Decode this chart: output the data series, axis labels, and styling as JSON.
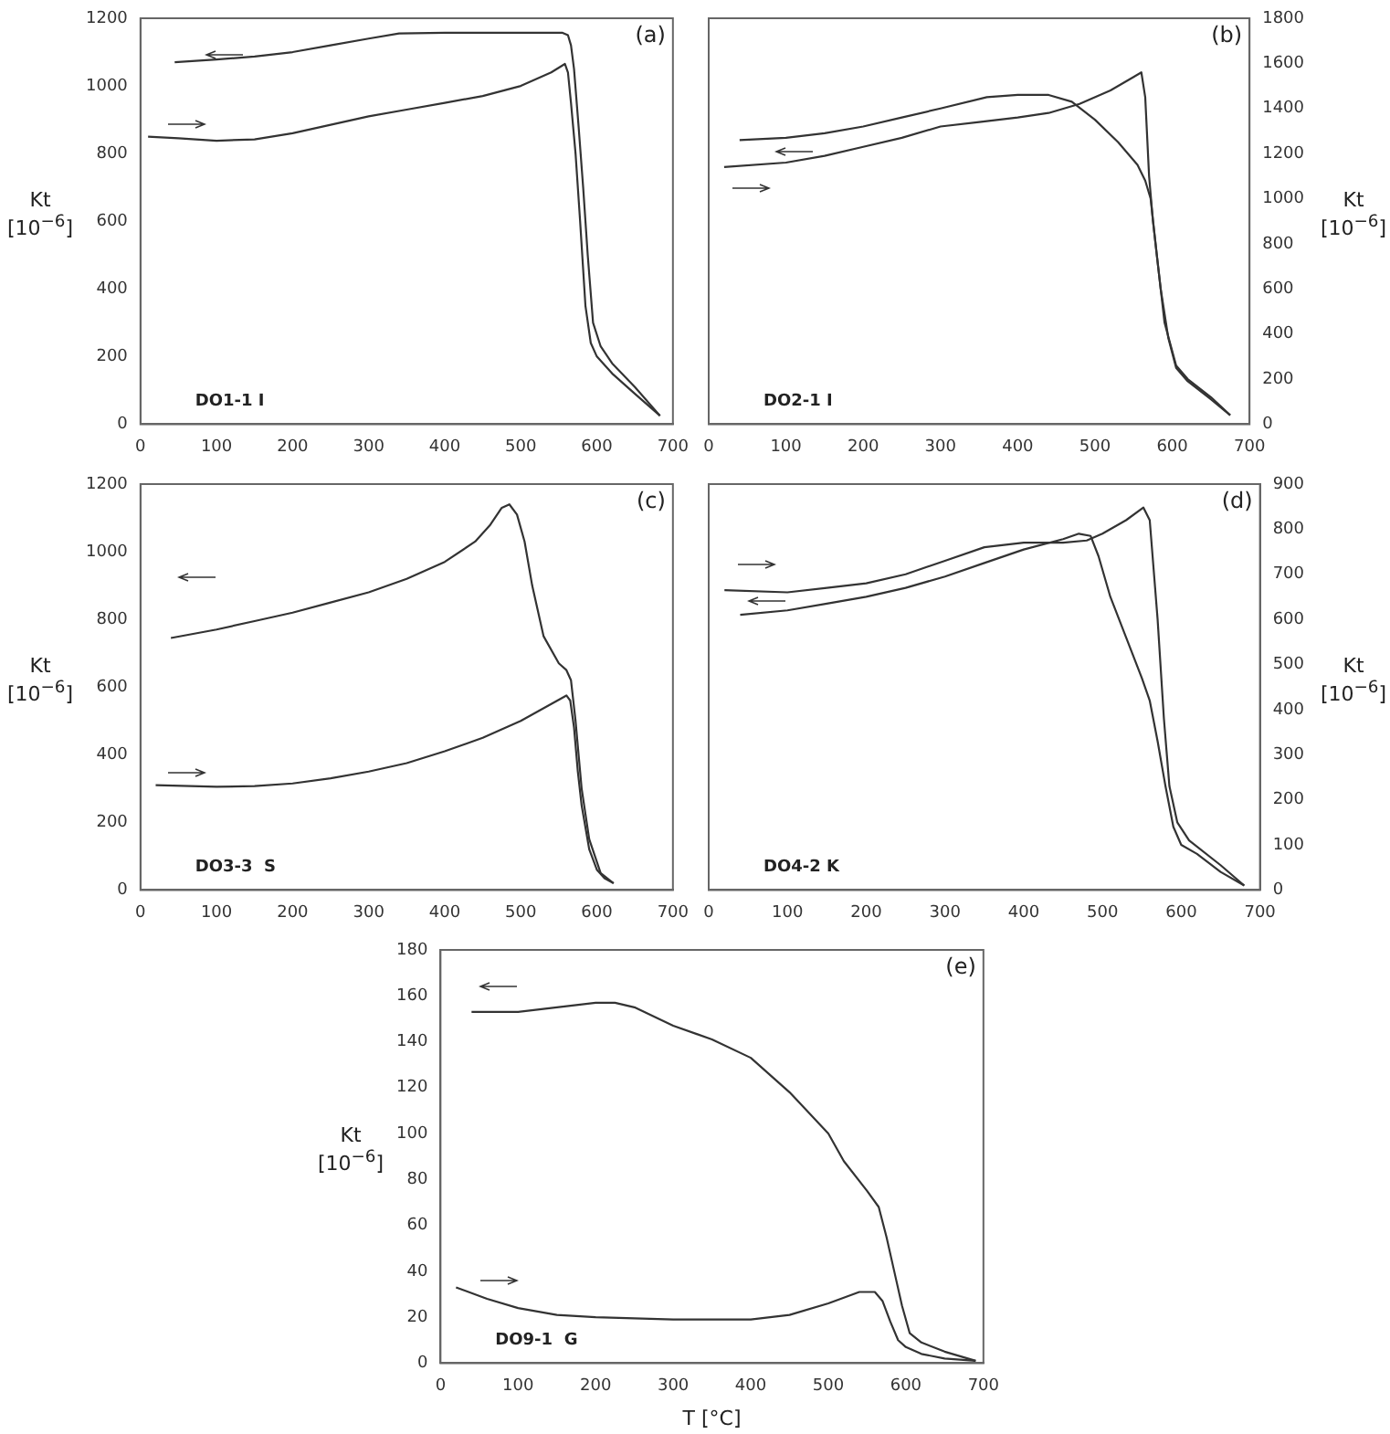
{
  "chart_data": [
    {
      "type": "line",
      "annotations": [
        "(a)",
        "DO1-1 I"
      ],
      "ylabel": "Kt [10$^{−6}$]",
      "xlim": [
        0,
        700
      ],
      "xticks": [
        0,
        100,
        200,
        300,
        400,
        500,
        600,
        700
      ],
      "ylim": [
        0,
        1200
      ],
      "yticks": [
        0,
        200,
        400,
        600,
        800,
        1000,
        1200
      ],
      "series": [
        {
          "color": "#333333",
          "x": [
            10,
            50,
            100,
            150,
            200,
            250,
            300,
            350,
            400,
            450,
            500,
            540,
            558,
            562,
            566,
            572,
            578,
            585,
            592,
            600,
            620,
            650,
            683
          ],
          "values": [
            850,
            845,
            838,
            842,
            860,
            885,
            910,
            930,
            950,
            970,
            1000,
            1040,
            1065,
            1040,
            950,
            800,
            600,
            350,
            240,
            200,
            150,
            90,
            25
          ]
        },
        {
          "color": "#333333",
          "x": [
            683,
            650,
            620,
            605,
            595,
            588,
            582,
            576,
            570,
            566,
            562,
            555,
            500,
            400,
            340,
            300,
            250,
            200,
            150,
            100,
            45
          ],
          "values": [
            25,
            110,
            180,
            230,
            300,
            500,
            700,
            880,
            1050,
            1120,
            1150,
            1157,
            1157,
            1157,
            1155,
            1140,
            1120,
            1100,
            1087,
            1078,
            1070
          ]
        }
      ]
    },
    {
      "type": "line",
      "annotations": [
        "(b)",
        "DO2-1 I"
      ],
      "y2label": "Kt [10$^{−6}$]",
      "xlim": [
        0,
        700
      ],
      "xticks": [
        0,
        100,
        200,
        300,
        400,
        500,
        600,
        700
      ],
      "y2lim": [
        0,
        1800
      ],
      "y2ticks": [
        0,
        200,
        400,
        600,
        800,
        1000,
        1200,
        1400,
        1600,
        1800
      ],
      "series": [
        {
          "color": "#333333",
          "axis": "y2",
          "x": [
            20,
            100,
            150,
            200,
            250,
            300,
            350,
            400,
            440,
            480,
            520,
            550,
            560,
            565,
            570,
            575,
            585,
            595,
            605,
            620,
            650,
            675
          ],
          "values": [
            1140,
            1160,
            1190,
            1230,
            1270,
            1320,
            1340,
            1360,
            1380,
            1420,
            1480,
            1540,
            1560,
            1450,
            1100,
            900,
            600,
            380,
            250,
            190,
            110,
            40
          ]
        },
        {
          "color": "#333333",
          "axis": "y2",
          "x": [
            675,
            650,
            620,
            605,
            590,
            580,
            572,
            565,
            555,
            530,
            500,
            470,
            440,
            400,
            360,
            300,
            250,
            200,
            150,
            100,
            40
          ],
          "values": [
            40,
            120,
            200,
            260,
            450,
            750,
            1000,
            1080,
            1150,
            1250,
            1350,
            1430,
            1460,
            1460,
            1450,
            1400,
            1360,
            1320,
            1290,
            1270,
            1260
          ]
        }
      ]
    },
    {
      "type": "line",
      "annotations": [
        "(c)",
        "DO3-3  S"
      ],
      "ylabel": "Kt [10$^{−6}$]",
      "xlim": [
        0,
        700
      ],
      "xticks": [
        0,
        100,
        200,
        300,
        400,
        500,
        600,
        700
      ],
      "ylim": [
        0,
        1200
      ],
      "yticks": [
        0,
        200,
        400,
        600,
        800,
        1000,
        1200
      ],
      "series": [
        {
          "color": "#333333",
          "x": [
            20,
            100,
            150,
            200,
            250,
            300,
            350,
            400,
            450,
            500,
            540,
            560,
            565,
            570,
            575,
            580,
            590,
            600,
            610,
            622
          ],
          "values": [
            310,
            305,
            307,
            315,
            330,
            350,
            375,
            410,
            450,
            500,
            550,
            575,
            560,
            480,
            350,
            250,
            120,
            60,
            35,
            20
          ]
        },
        {
          "color": "#333333",
          "x": [
            622,
            605,
            590,
            580,
            572,
            566,
            560,
            550,
            530,
            515,
            505,
            495,
            485,
            475,
            460,
            440,
            400,
            350,
            300,
            250,
            200,
            150,
            100,
            40
          ],
          "values": [
            20,
            50,
            150,
            300,
            500,
            620,
            650,
            670,
            750,
            900,
            1030,
            1110,
            1140,
            1130,
            1080,
            1030,
            970,
            920,
            880,
            850,
            820,
            795,
            770,
            745
          ]
        }
      ]
    },
    {
      "type": "line",
      "annotations": [
        "(d)",
        "DO4-2 K"
      ],
      "y2label": "Kt [10$^{−6}$]",
      "xlim": [
        0,
        700
      ],
      "xticks": [
        0,
        100,
        200,
        300,
        400,
        500,
        600,
        700
      ],
      "y2lim": [
        0,
        900
      ],
      "y2ticks": [
        0,
        100,
        200,
        300,
        400,
        500,
        600,
        700,
        800,
        900
      ],
      "series": [
        {
          "color": "#333333",
          "axis": "y2",
          "x": [
            20,
            100,
            150,
            200,
            250,
            300,
            350,
            400,
            450,
            480,
            500,
            530,
            552,
            560,
            570,
            578,
            585,
            595,
            610,
            650,
            680
          ],
          "values": [
            665,
            660,
            670,
            680,
            700,
            730,
            760,
            770,
            770,
            775,
            790,
            820,
            848,
            820,
            600,
            380,
            230,
            150,
            110,
            55,
            10
          ]
        },
        {
          "color": "#333333",
          "axis": "y2",
          "x": [
            680,
            650,
            620,
            600,
            590,
            580,
            570,
            560,
            550,
            530,
            510,
            495,
            485,
            470,
            450,
            400,
            350,
            300,
            250,
            200,
            150,
            100,
            40
          ],
          "values": [
            10,
            40,
            80,
            100,
            140,
            230,
            330,
            420,
            470,
            560,
            650,
            740,
            785,
            790,
            778,
            755,
            725,
            695,
            670,
            650,
            635,
            620,
            610
          ]
        }
      ]
    },
    {
      "type": "line",
      "annotations": [
        "(e)",
        "DO9-1  G"
      ],
      "xlabel": "T [°C]",
      "ylabel": "Kt [10$^{−6}$]",
      "xlim": [
        0,
        700
      ],
      "xticks": [
        0,
        100,
        200,
        300,
        400,
        500,
        600,
        700
      ],
      "ylim": [
        0,
        180
      ],
      "yticks": [
        0,
        20,
        40,
        60,
        80,
        100,
        120,
        140,
        160,
        180
      ],
      "series": [
        {
          "color": "#333333",
          "x": [
            20,
            60,
            100,
            150,
            200,
            300,
            400,
            450,
            500,
            540,
            560,
            570,
            580,
            590,
            600,
            620,
            650,
            690
          ],
          "values": [
            33,
            28,
            24,
            21,
            20,
            19,
            19,
            21,
            26,
            31,
            31,
            27,
            18,
            10,
            7,
            4,
            2,
            1
          ]
        },
        {
          "color": "#333333",
          "x": [
            690,
            650,
            620,
            605,
            595,
            585,
            575,
            565,
            550,
            520,
            500,
            450,
            400,
            350,
            300,
            250,
            225,
            200,
            150,
            100,
            40
          ],
          "values": [
            1,
            5,
            9,
            13,
            25,
            40,
            55,
            68,
            75,
            88,
            100,
            118,
            133,
            141,
            147,
            155,
            157,
            157,
            155,
            153,
            153
          ]
        }
      ]
    }
  ]
}
